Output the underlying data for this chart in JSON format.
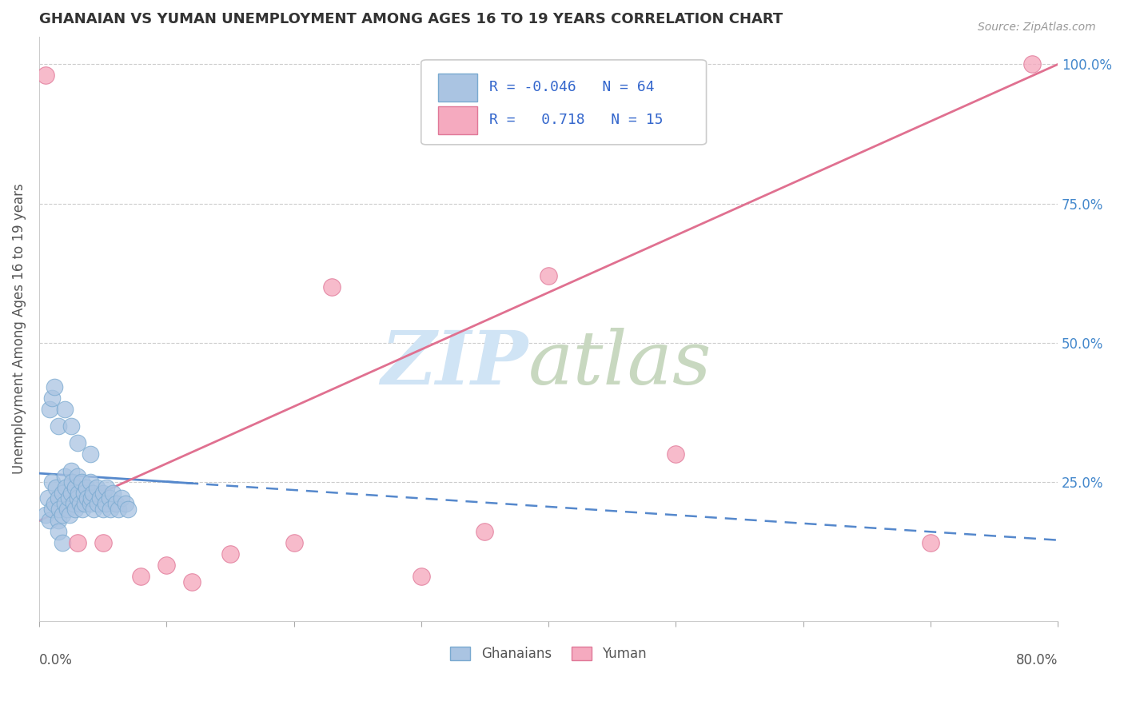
{
  "title": "GHANAIAN VS YUMAN UNEMPLOYMENT AMONG AGES 16 TO 19 YEARS CORRELATION CHART",
  "source": "Source: ZipAtlas.com",
  "ylabel": "Unemployment Among Ages 16 to 19 years",
  "yticks": [
    0.0,
    0.25,
    0.5,
    0.75,
    1.0
  ],
  "ytick_labels": [
    "",
    "25.0%",
    "50.0%",
    "75.0%",
    "100.0%"
  ],
  "ghanaian_color": "#aac4e2",
  "ghanaian_edge": "#7aaad0",
  "yuman_color": "#f5aabf",
  "yuman_edge": "#e07898",
  "trend_blue_color": "#5588cc",
  "trend_pink_color": "#e07090",
  "watermark_zip_color": "#d0e4f5",
  "watermark_atlas_color": "#c8d8c0",
  "blue_trend_x0": 0.0,
  "blue_trend_y0": 0.265,
  "blue_trend_x1": 0.8,
  "blue_trend_y1": 0.145,
  "pink_trend_x0": 0.0,
  "pink_trend_y0": 0.18,
  "pink_trend_x1": 0.8,
  "pink_trend_y1": 1.0,
  "blue_scatter_x": [
    0.005,
    0.007,
    0.008,
    0.01,
    0.01,
    0.012,
    0.013,
    0.015,
    0.015,
    0.016,
    0.018,
    0.018,
    0.02,
    0.02,
    0.021,
    0.022,
    0.023,
    0.024,
    0.025,
    0.025,
    0.026,
    0.027,
    0.028,
    0.028,
    0.03,
    0.03,
    0.031,
    0.032,
    0.033,
    0.034,
    0.035,
    0.036,
    0.037,
    0.038,
    0.04,
    0.04,
    0.041,
    0.042,
    0.043,
    0.045,
    0.046,
    0.048,
    0.05,
    0.05,
    0.052,
    0.053,
    0.055,
    0.056,
    0.058,
    0.06,
    0.062,
    0.065,
    0.068,
    0.07,
    0.008,
    0.01,
    0.012,
    0.015,
    0.02,
    0.025,
    0.03,
    0.04,
    0.015,
    0.018
  ],
  "blue_scatter_y": [
    0.19,
    0.22,
    0.18,
    0.2,
    0.25,
    0.21,
    0.24,
    0.22,
    0.18,
    0.2,
    0.23,
    0.19,
    0.21,
    0.26,
    0.24,
    0.2,
    0.22,
    0.19,
    0.23,
    0.27,
    0.25,
    0.21,
    0.2,
    0.24,
    0.22,
    0.26,
    0.23,
    0.21,
    0.25,
    0.2,
    0.23,
    0.21,
    0.24,
    0.22,
    0.21,
    0.25,
    0.22,
    0.23,
    0.2,
    0.24,
    0.21,
    0.22,
    0.2,
    0.23,
    0.21,
    0.24,
    0.22,
    0.2,
    0.23,
    0.21,
    0.2,
    0.22,
    0.21,
    0.2,
    0.38,
    0.4,
    0.42,
    0.35,
    0.38,
    0.35,
    0.32,
    0.3,
    0.16,
    0.14
  ],
  "pink_scatter_x": [
    0.005,
    0.03,
    0.05,
    0.08,
    0.1,
    0.12,
    0.15,
    0.2,
    0.23,
    0.3,
    0.35,
    0.4,
    0.5,
    0.7,
    0.78
  ],
  "pink_scatter_y": [
    0.98,
    0.14,
    0.14,
    0.08,
    0.1,
    0.07,
    0.12,
    0.14,
    0.6,
    0.08,
    0.16,
    0.62,
    0.3,
    0.14,
    1.0
  ],
  "xmin": 0.0,
  "xmax": 0.8,
  "ymin": 0.0,
  "ymax": 1.05
}
